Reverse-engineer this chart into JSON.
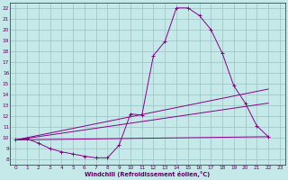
{
  "background_color": "#c5e8e8",
  "grid_color": "#a0c8c8",
  "line_color": "#880088",
  "marker": "+",
  "xlabel": "Windchill (Refroidissement éolien,°C)",
  "xlabel_color": "#660066",
  "tick_color": "#660066",
  "xlim": [
    -0.5,
    23.5
  ],
  "ylim": [
    7.5,
    22.5
  ],
  "yticks": [
    8,
    9,
    10,
    11,
    12,
    13,
    14,
    15,
    16,
    17,
    18,
    19,
    20,
    21,
    22
  ],
  "xticks": [
    0,
    1,
    2,
    3,
    4,
    5,
    6,
    7,
    8,
    9,
    10,
    11,
    12,
    13,
    14,
    15,
    16,
    17,
    18,
    19,
    20,
    21,
    22,
    23
  ],
  "series": [
    {
      "x": [
        0,
        1,
        2,
        3,
        4,
        5,
        6,
        7,
        8,
        9,
        10,
        11,
        12,
        13,
        14,
        15,
        16,
        17,
        18,
        19,
        20,
        21,
        22
      ],
      "y": [
        9.8,
        9.9,
        9.5,
        9.0,
        8.7,
        8.5,
        8.3,
        8.15,
        8.15,
        9.3,
        12.2,
        12.1,
        17.6,
        18.9,
        22.0,
        22.0,
        21.3,
        20.0,
        17.8,
        14.8,
        13.2,
        11.1,
        10.1
      ],
      "has_marker": true
    },
    {
      "x": [
        0,
        22
      ],
      "y": [
        9.8,
        14.5
      ],
      "has_marker": false
    },
    {
      "x": [
        0,
        22
      ],
      "y": [
        9.8,
        13.2
      ],
      "has_marker": false
    },
    {
      "x": [
        0,
        22
      ],
      "y": [
        9.8,
        10.1
      ],
      "has_marker": false
    }
  ]
}
